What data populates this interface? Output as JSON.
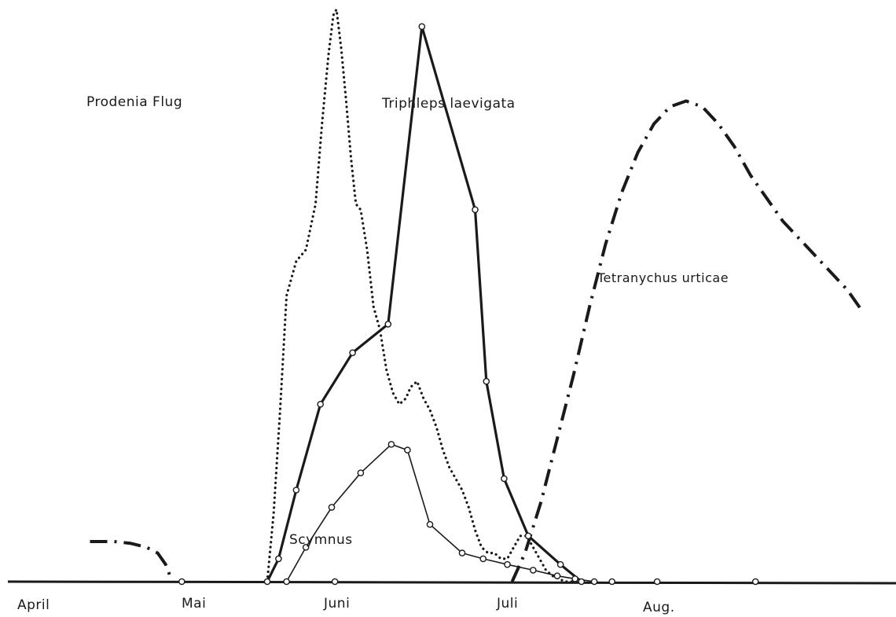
{
  "chart_data": {
    "type": "line",
    "title": "",
    "xlabel": "",
    "ylabel": "",
    "x_unit": "month (0 = start of April)",
    "xlim": [
      -0.1,
      4.75
    ],
    "ylim": [
      0,
      100
    ],
    "grid": false,
    "legend": "none (series labelled directly on the plot)",
    "month_labels": [
      "April",
      "Mai",
      "Juni",
      "Juli",
      "Aug."
    ],
    "month_positions": [
      0,
      1,
      2,
      3,
      4
    ],
    "baseline_markers": {
      "style": "open circles",
      "x": [
        0.47,
        1.42,
        3.14,
        3.42,
        4.03
      ]
    },
    "series": [
      {
        "name": "Prodenia Flug",
        "style": "dotted",
        "color": "#1a1a1a",
        "label_position": "upper left",
        "x": [
          1.0,
          1.04,
          1.08,
          1.12,
          1.18,
          1.24,
          1.3,
          1.34,
          1.38,
          1.41,
          1.43,
          1.46,
          1.49,
          1.52,
          1.55,
          1.58,
          1.62,
          1.66,
          1.7,
          1.74,
          1.78,
          1.82,
          1.86,
          1.89,
          1.93,
          1.97,
          2.01,
          2.05,
          2.09,
          2.13,
          2.17,
          2.21,
          2.25,
          2.29,
          2.33,
          2.37,
          2.41,
          2.45,
          2.49,
          2.53,
          2.57,
          2.61,
          2.65,
          2.69,
          2.73,
          2.77,
          2.81,
          2.85,
          2.9,
          2.95
        ],
        "values": [
          0,
          12,
          30,
          50,
          56,
          58,
          66,
          80,
          92,
          99,
          100,
          93,
          84,
          74,
          66,
          65,
          58,
          48,
          44,
          37,
          33,
          31,
          32,
          34,
          35,
          32,
          30,
          27,
          23,
          20,
          18,
          16,
          13,
          9,
          6,
          5,
          5,
          4,
          4,
          6,
          8,
          8,
          6,
          4,
          2,
          1,
          0.5,
          0,
          0,
          0
        ]
      },
      {
        "name": "Triphleps laevigata",
        "style": "solid-heavy",
        "color": "#1a1a1a",
        "marker": "open circle",
        "label_position": "upper center",
        "x": [
          1.0,
          1.07,
          1.18,
          1.33,
          1.53,
          1.75,
          1.96,
          2.29,
          2.36,
          2.47,
          2.62,
          2.82,
          2.95
        ],
        "values": [
          0,
          4,
          16,
          31,
          40,
          45,
          97,
          65,
          35,
          18,
          8,
          3,
          0
        ]
      },
      {
        "name": "Scymnus",
        "style": "solid-thin",
        "color": "#1a1a1a",
        "marker": "open circle",
        "label_position": "center below Juni peak",
        "x": [
          1.12,
          1.24,
          1.4,
          1.58,
          1.77,
          1.87,
          2.01,
          2.21,
          2.34,
          2.49,
          2.65,
          2.8,
          2.91,
          3.03
        ],
        "values": [
          0,
          6,
          13,
          19,
          24,
          23,
          10,
          5,
          4,
          3,
          2,
          1,
          0.5,
          0
        ]
      },
      {
        "name": "Tetranychus urticae",
        "style": "dash-dot",
        "color": "#1a1a1a",
        "label_position": "right",
        "x": [
          2.52,
          2.6,
          2.7,
          2.8,
          2.9,
          3.0,
          3.1,
          3.2,
          3.3,
          3.4,
          3.5,
          3.6,
          3.7,
          3.8,
          3.9,
          4.0,
          4.1,
          4.2,
          4.3,
          4.4,
          4.5,
          4.6,
          4.7
        ],
        "values": [
          0,
          5,
          14,
          25,
          36,
          48,
          59,
          68,
          75,
          80,
          83,
          84,
          83,
          80,
          76,
          71,
          67,
          63,
          60,
          57,
          54,
          51,
          47
        ]
      },
      {
        "name": "",
        "style": "dash-dot",
        "color": "#1a1a1a",
        "x": [
          -0.1,
          0.05,
          0.15,
          0.25,
          0.32,
          0.37,
          0.41
        ],
        "values": [
          7,
          7,
          6.7,
          6,
          5,
          3,
          0
        ]
      }
    ]
  },
  "labels": {
    "prodenia": "Prodenia Flug",
    "triphleps": "Triphleps laevigata",
    "tetranychus": "Tetranychus urticae",
    "scymnus": "Scymnus",
    "april": "April",
    "mai": "Mai",
    "juni": "Juni",
    "juli": "Juli",
    "aug": "Aug."
  }
}
